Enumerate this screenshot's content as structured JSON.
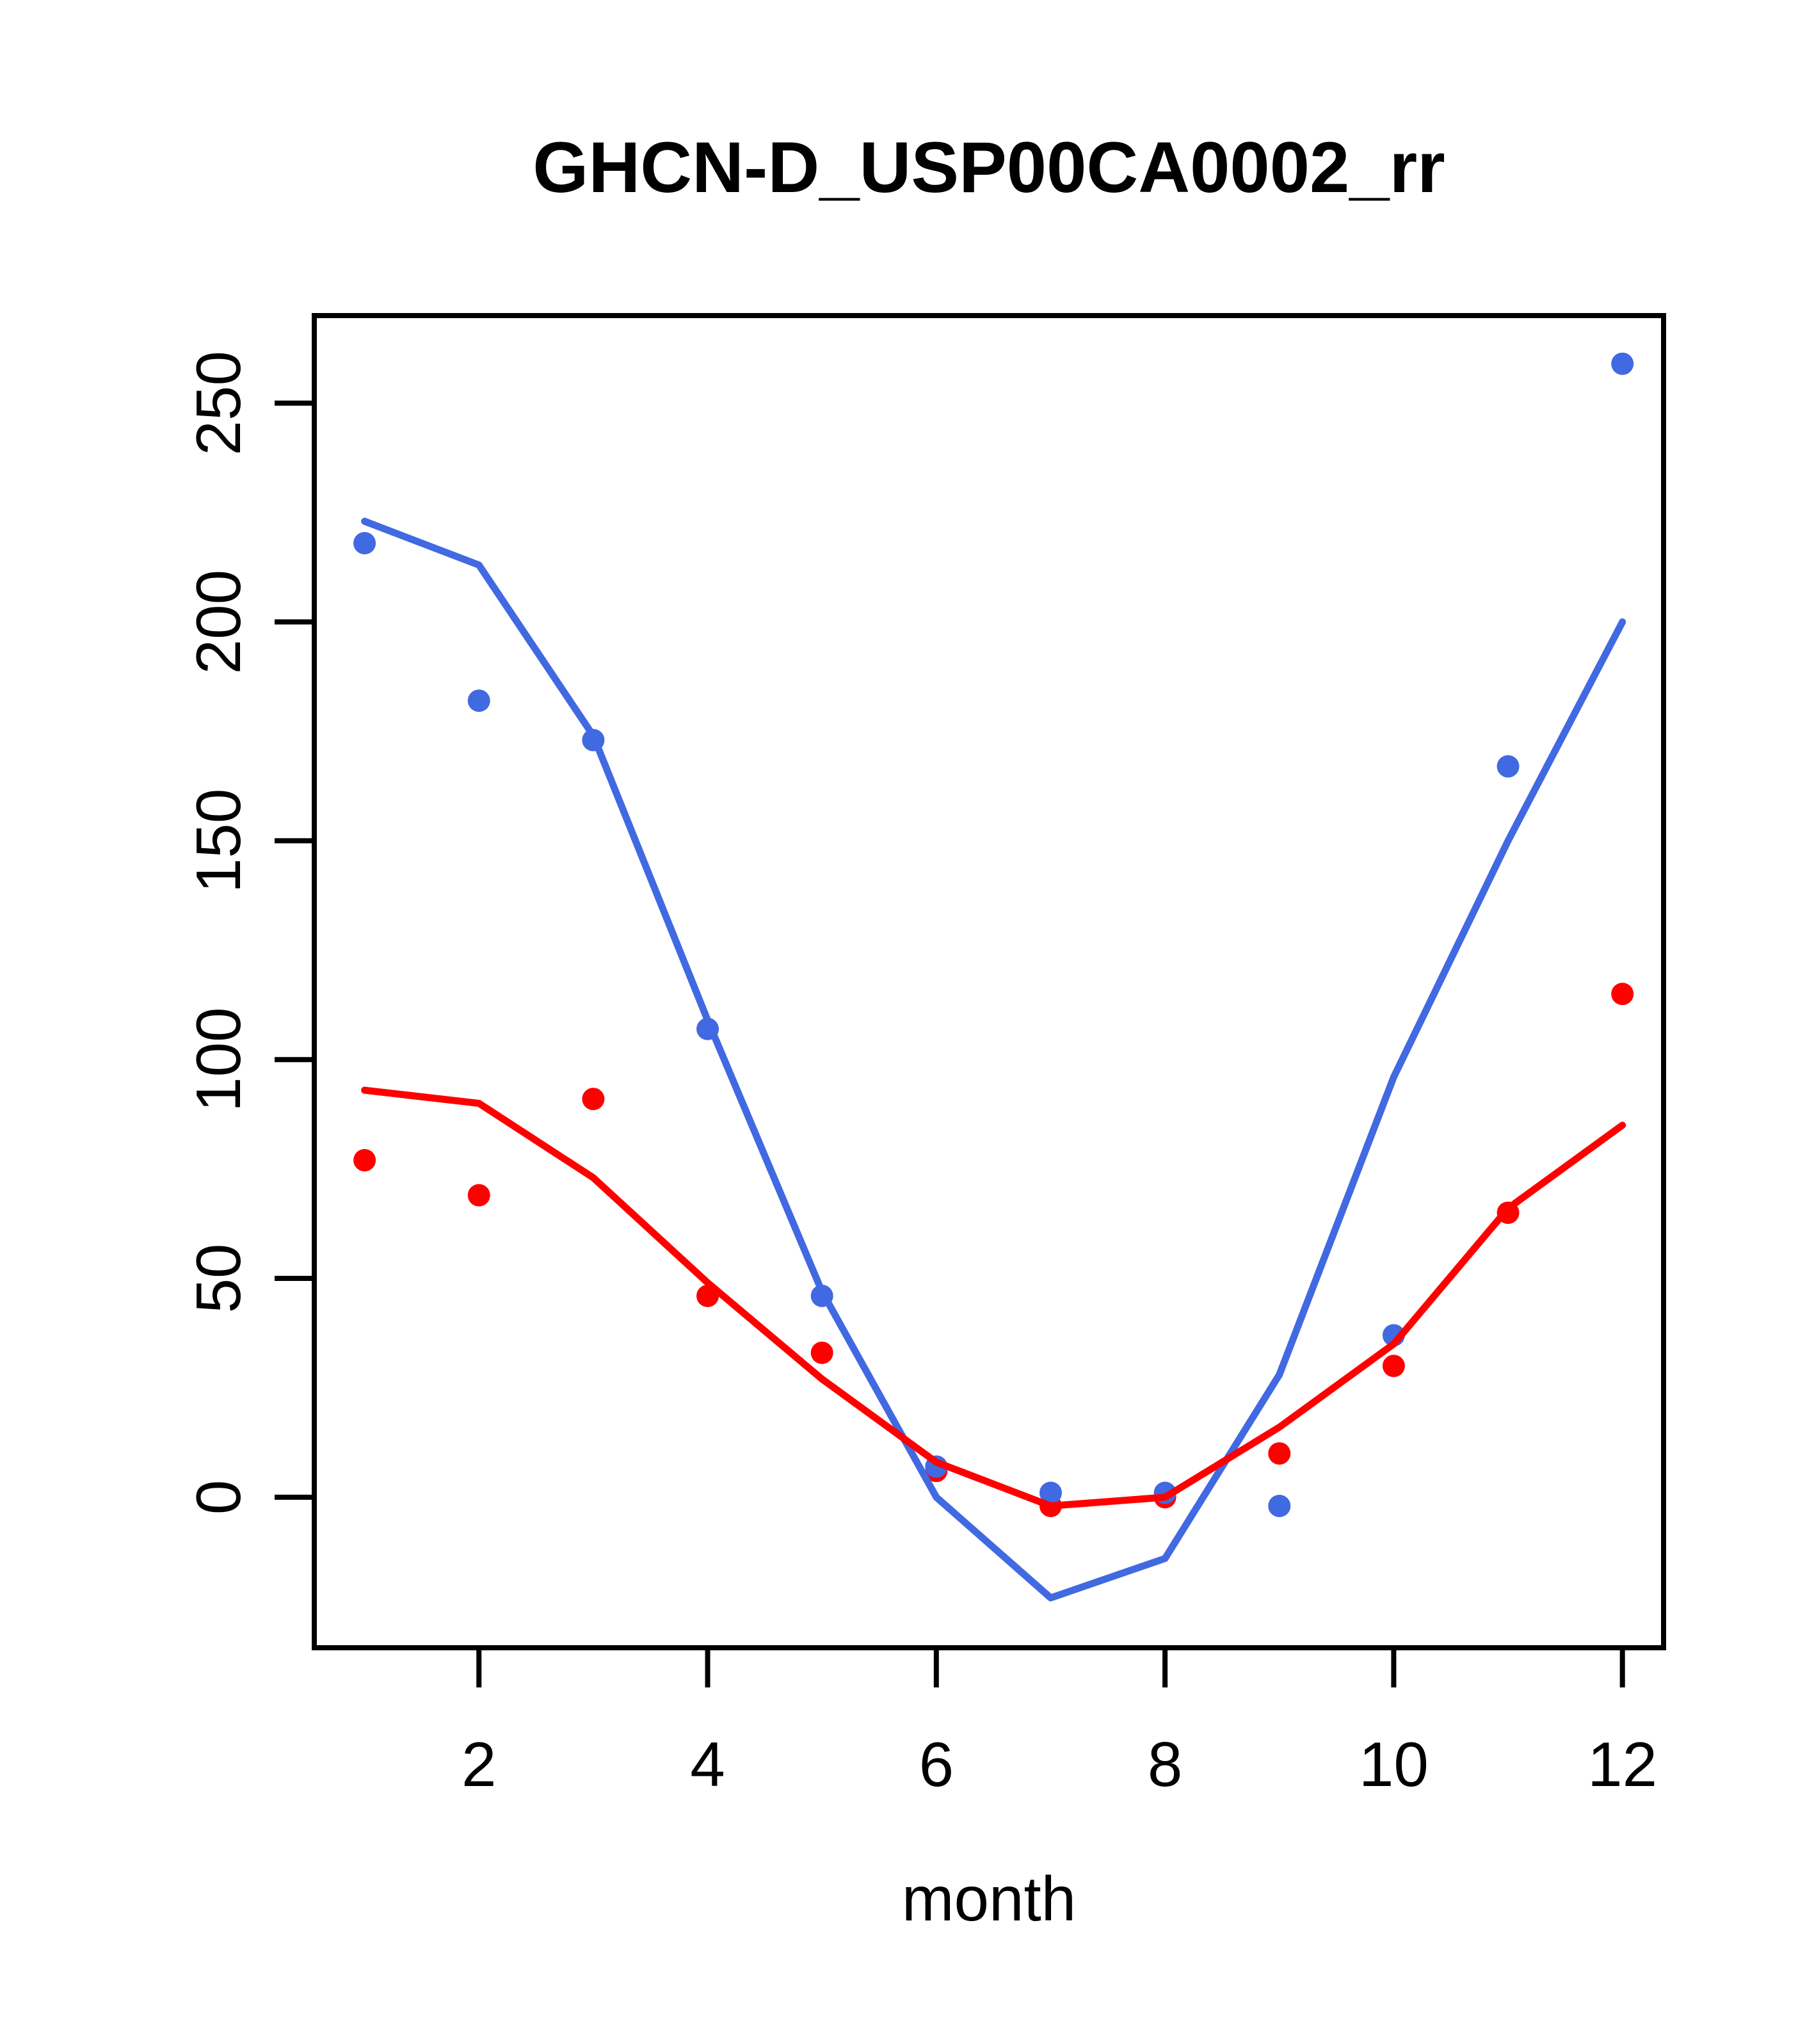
{
  "chart_data": {
    "type": "scatter",
    "title": "GHCN-D_USP00CA0002_rr",
    "xlabel": "month",
    "ylabel": "",
    "x": [
      1,
      2,
      3,
      4,
      5,
      6,
      7,
      8,
      9,
      10,
      11,
      12
    ],
    "series": [
      {
        "name": "red-points",
        "kind": "points",
        "color": "#FF0000",
        "values": [
          77,
          69,
          91,
          46,
          33,
          6,
          -2,
          0,
          10,
          30,
          65,
          115
        ]
      },
      {
        "name": "blue-points",
        "kind": "points",
        "color": "#4169E1",
        "values": [
          218,
          182,
          173,
          107,
          46,
          7,
          1,
          1,
          -2,
          37,
          167,
          259
        ]
      },
      {
        "name": "blue-line",
        "kind": "line",
        "color": "#4169E1",
        "values": [
          223,
          213,
          174,
          109,
          47,
          0,
          -23,
          -14,
          28,
          96,
          150,
          200
        ]
      },
      {
        "name": "red-line",
        "kind": "line",
        "color": "#FF0000",
        "values": [
          93,
          90,
          73,
          49,
          27,
          8,
          -2,
          0,
          16,
          35,
          66,
          85
        ]
      }
    ],
    "x_ticks": [
      "2",
      "4",
      "6",
      "8",
      "10",
      "12"
    ],
    "x_tick_values": [
      2,
      4,
      6,
      8,
      10,
      12
    ],
    "y_ticks": [
      "0",
      "50",
      "100",
      "150",
      "200",
      "250"
    ],
    "y_tick_values": [
      0,
      50,
      100,
      150,
      200,
      250
    ],
    "xlim": [
      0.56,
      12.36
    ],
    "ylim": [
      -34.4,
      270.0
    ],
    "grid": false,
    "legend": "none",
    "frame_color": "#000000",
    "background": "#ffffff"
  }
}
